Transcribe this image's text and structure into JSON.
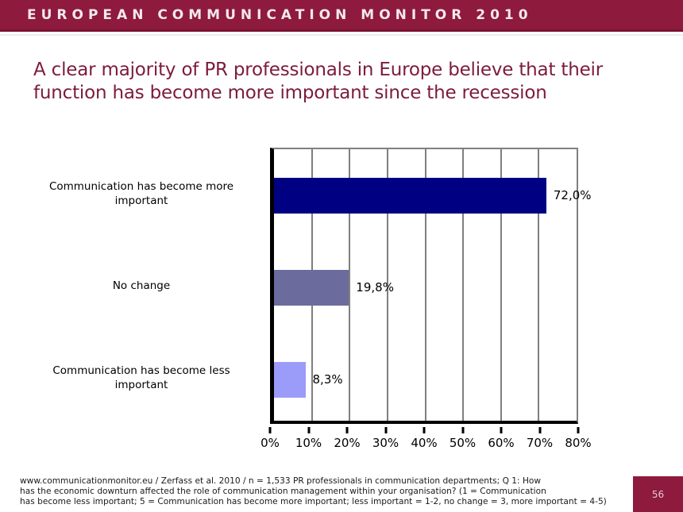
{
  "header": {
    "band_title": "EUROPEAN COMMUNICATION MONITOR 2010",
    "band_color": "#8E1A3E"
  },
  "title": "A clear majority of PR professionals in Europe believe that their function has become more important since the recession",
  "title_color": "#7C1B3D",
  "chart_data": {
    "type": "bar",
    "orientation": "horizontal",
    "title": "",
    "xlabel": "",
    "ylabel": "",
    "categories": [
      "Communication has become more important",
      "No change",
      "Communication has become less important"
    ],
    "values": [
      72.0,
      19.8,
      8.3
    ],
    "value_labels": [
      "72,0%",
      "19,8%",
      "8,3%"
    ],
    "bar_colors": [
      "#000082",
      "#6B6B9E",
      "#9B9BFA"
    ],
    "xlim": [
      0,
      80
    ],
    "x_tick_step": 10,
    "x_tick_labels": [
      "0%",
      "10%",
      "20%",
      "30%",
      "40%",
      "50%",
      "60%",
      "70%",
      "80%"
    ],
    "grid": true,
    "gridline_color": "#7f7f7f",
    "legend": false
  },
  "footnote": {
    "lines": [
      "www.communicationmonitor.eu / Zerfass et al. 2010 / n = 1,533 PR professionals in communication departments; Q 1: How",
      "has the economic downturn affected the role of communication management within your organisation? (1 = Communication",
      "has become less important; 5 = Communication has become more important; less important = 1-2, no change = 3, more important = 4-5)"
    ]
  },
  "page_number": "56"
}
